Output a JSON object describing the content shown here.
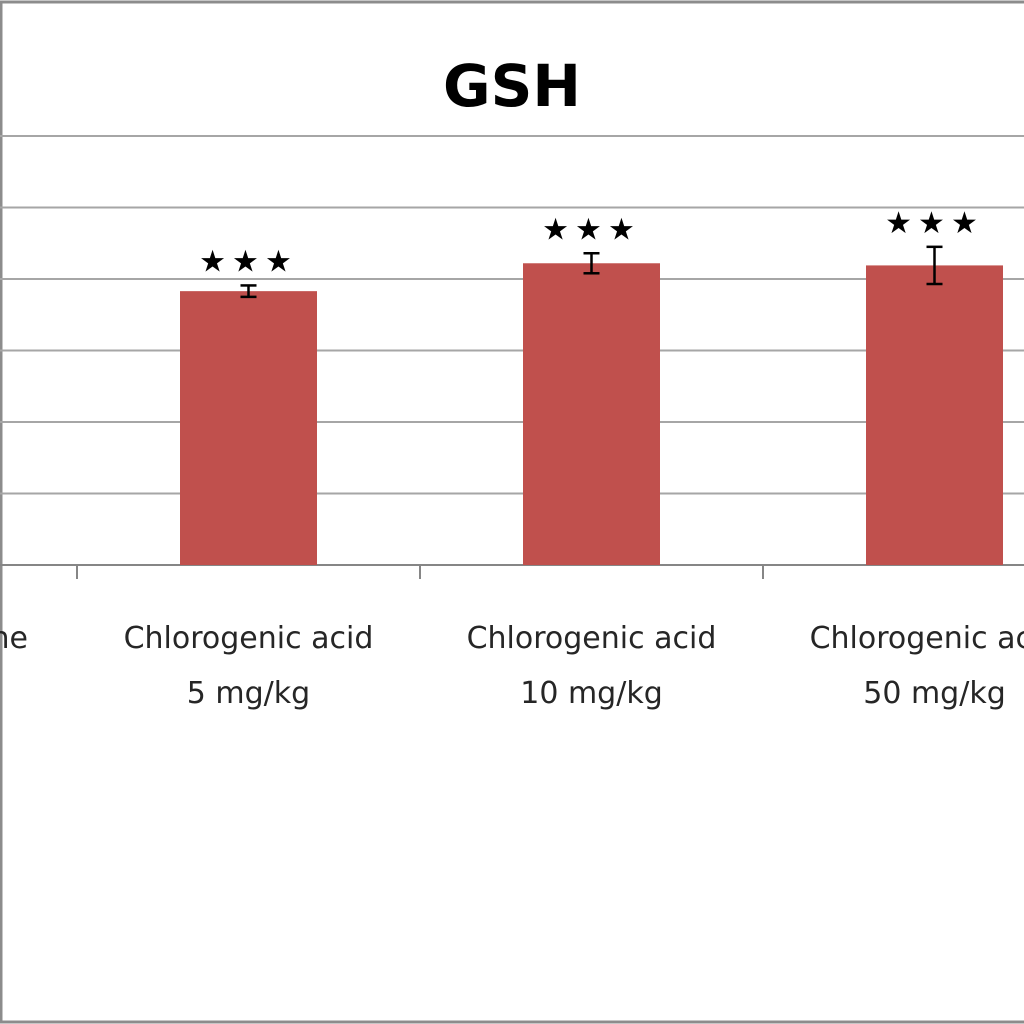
{
  "chart_data": {
    "type": "bar",
    "title": "GSH",
    "xlabel": "",
    "ylabel": "",
    "ylim": [
      0,
      6
    ],
    "grid": true,
    "legend": "none",
    "bar_color": "#C0504D",
    "gridline_color": "#A6A6A6",
    "categories": [
      {
        "line1": "…ne",
        "line2": ""
      },
      {
        "line1": "Chlorogenic acid",
        "line2": "5 mg/kg"
      },
      {
        "line1": "Chlorogenic acid",
        "line2": "10 mg/kg"
      },
      {
        "line1": "Chlorogenic acid",
        "line2": "50 mg/kg"
      }
    ],
    "values": [
      null,
      3.83,
      4.22,
      4.19
    ],
    "errors": [
      null,
      0.08,
      0.14,
      0.26
    ],
    "significance": [
      "",
      "★★★",
      "★★★",
      "★★★"
    ]
  }
}
